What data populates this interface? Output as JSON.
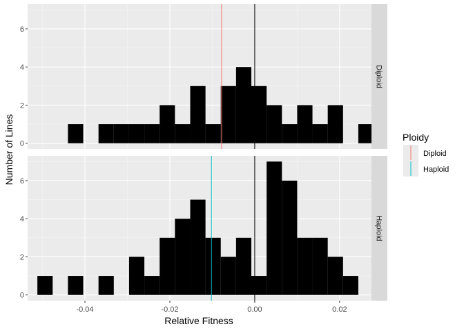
{
  "chart_data": {
    "type": "faceted-histogram",
    "xlabel": "Relative Fitness",
    "ylabel": "Number of Lines",
    "x_ticks": [
      -0.04,
      -0.02,
      0.0,
      0.02
    ],
    "x_tick_labels": [
      "-0.04",
      "-0.02",
      "0.00",
      "0.02"
    ],
    "xlim": [
      -0.0535,
      0.0275
    ],
    "bin_width": 0.0036,
    "zero_line": 0.0,
    "legend": {
      "title": "Ploidy",
      "placement": "right",
      "entries": [
        {
          "label": "Diploid",
          "color": "#F8766D"
        },
        {
          "label": "Haploid",
          "color": "#00BFC4"
        }
      ]
    },
    "panels": [
      {
        "name": "Diploid",
        "ylim": [
          -0.3,
          7.3
        ],
        "y_ticks": [
          0,
          2,
          4,
          6
        ],
        "mean_line": -0.0078,
        "mean_color": "#F8766D",
        "bins": [
          {
            "x": -0.0422,
            "count": 1
          },
          {
            "x": -0.035,
            "count": 1
          },
          {
            "x": -0.0314,
            "count": 1
          },
          {
            "x": -0.0278,
            "count": 1
          },
          {
            "x": -0.0242,
            "count": 1
          },
          {
            "x": -0.0206,
            "count": 2
          },
          {
            "x": -0.017,
            "count": 1
          },
          {
            "x": -0.0134,
            "count": 3
          },
          {
            "x": -0.0098,
            "count": 1
          },
          {
            "x": -0.0062,
            "count": 3
          },
          {
            "x": -0.0026,
            "count": 4
          },
          {
            "x": 0.001,
            "count": 3
          },
          {
            "x": 0.0046,
            "count": 2
          },
          {
            "x": 0.0082,
            "count": 1
          },
          {
            "x": 0.0118,
            "count": 2
          },
          {
            "x": 0.0154,
            "count": 1
          },
          {
            "x": 0.019,
            "count": 2
          },
          {
            "x": 0.0226,
            "count": 0
          },
          {
            "x": 0.0262,
            "count": 1
          }
        ]
      },
      {
        "name": "Haploid",
        "ylim": [
          -0.3,
          7.3
        ],
        "y_ticks": [
          0,
          2,
          4,
          6
        ],
        "mean_line": -0.0102,
        "mean_color": "#00BFC4",
        "bins": [
          {
            "x": -0.0494,
            "count": 1
          },
          {
            "x": -0.0422,
            "count": 1
          },
          {
            "x": -0.035,
            "count": 1
          },
          {
            "x": -0.0278,
            "count": 2
          },
          {
            "x": -0.0242,
            "count": 1
          },
          {
            "x": -0.0206,
            "count": 3
          },
          {
            "x": -0.017,
            "count": 4
          },
          {
            "x": -0.0134,
            "count": 5
          },
          {
            "x": -0.0098,
            "count": 3
          },
          {
            "x": -0.0062,
            "count": 2
          },
          {
            "x": -0.0026,
            "count": 3
          },
          {
            "x": 0.001,
            "count": 1
          },
          {
            "x": 0.0046,
            "count": 7
          },
          {
            "x": 0.0082,
            "count": 6
          },
          {
            "x": 0.0118,
            "count": 3
          },
          {
            "x": 0.0154,
            "count": 3
          },
          {
            "x": 0.019,
            "count": 2
          },
          {
            "x": 0.0226,
            "count": 1
          },
          {
            "x": 0.0262,
            "count": 0
          }
        ]
      }
    ]
  }
}
